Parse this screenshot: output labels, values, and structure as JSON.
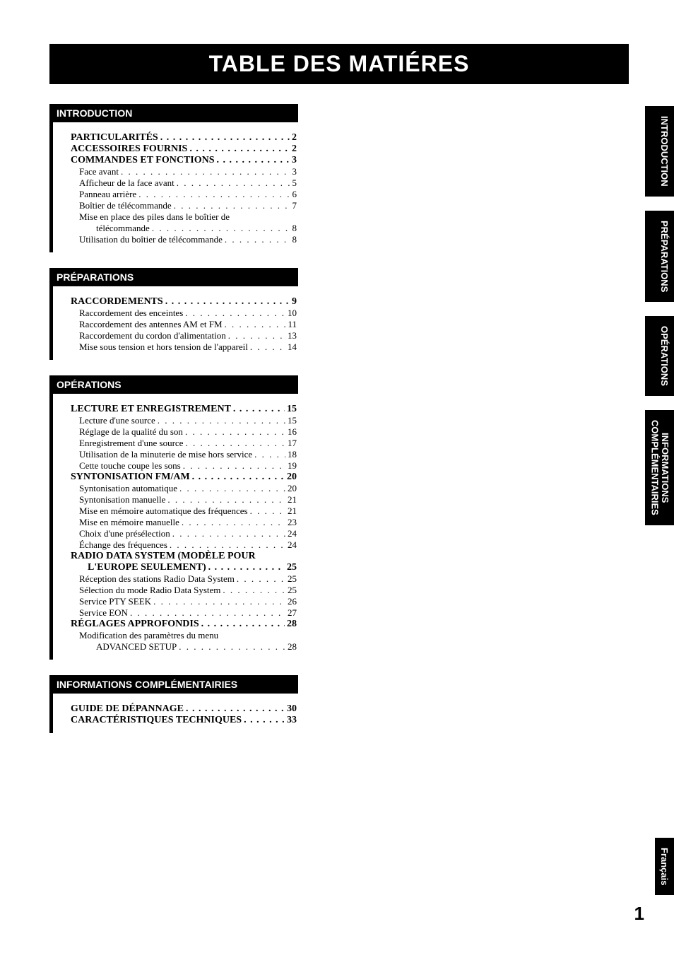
{
  "title": "TABLE DES MATIÉRES",
  "page_number": "1",
  "language_tab": "Français",
  "tabs": [
    "INTRODUCTION",
    "PRÉPARATIONS",
    "OPÉRATIONS",
    "INFORMATIONS\nCOMPLÉMENTAIRIES"
  ],
  "sections": [
    {
      "header": "INTRODUCTION",
      "items": [
        {
          "level": "major",
          "label": "PARTICULARITÉS",
          "page": "2"
        },
        {
          "level": "major",
          "label": "ACCESSOIRES FOURNIS",
          "page": "2"
        },
        {
          "level": "major",
          "label": "COMMANDES ET FONCTIONS",
          "page": "3"
        },
        {
          "level": "sub1",
          "label": "Face avant",
          "page": "3"
        },
        {
          "level": "sub1",
          "label": "Afficheur de la face avant",
          "page": "5"
        },
        {
          "level": "sub1",
          "label": "Panneau arrière",
          "page": "6"
        },
        {
          "level": "sub1",
          "label": "Boîtier de télécommande",
          "page": "7"
        },
        {
          "level": "sub1",
          "label": "Mise en place des piles dans le boîtier de",
          "wrap": "télécommande",
          "page": "8"
        },
        {
          "level": "sub1",
          "label": "Utilisation du boîtier de télécommande",
          "page": "8"
        }
      ]
    },
    {
      "header": "PRÉPARATIONS",
      "items": [
        {
          "level": "major",
          "label": "RACCORDEMENTS",
          "page": "9"
        },
        {
          "level": "sub1",
          "label": "Raccordement des enceintes",
          "page": "10"
        },
        {
          "level": "sub1",
          "label": "Raccordement des antennes AM et FM",
          "page": "11"
        },
        {
          "level": "sub1",
          "label": "Raccordement du cordon d'alimentation",
          "page": "13"
        },
        {
          "level": "sub1",
          "label": "Mise sous tension et hors tension de l'appareil",
          "page": "14"
        }
      ]
    },
    {
      "header": "OPÉRATIONS",
      "items": [
        {
          "level": "major",
          "label": "LECTURE ET ENREGISTREMENT",
          "page": "15"
        },
        {
          "level": "sub1",
          "label": "Lecture d'une source",
          "page": "15"
        },
        {
          "level": "sub1",
          "label": "Réglage de la qualité du son",
          "page": "16"
        },
        {
          "level": "sub1",
          "label": "Enregistrement d'une source",
          "page": "17"
        },
        {
          "level": "sub1",
          "label": "Utilisation de la minuterie de mise hors service",
          "page": "18"
        },
        {
          "level": "sub1",
          "label": "Cette touche coupe les sons",
          "page": "19"
        },
        {
          "level": "major",
          "label": "SYNTONISATION FM/AM",
          "page": "20"
        },
        {
          "level": "sub1",
          "label": "Syntonisation automatique",
          "page": "20"
        },
        {
          "level": "sub1",
          "label": "Syntonisation manuelle",
          "page": "21"
        },
        {
          "level": "sub1",
          "label": "Mise en mémoire automatique des fréquences",
          "page": "21"
        },
        {
          "level": "sub1",
          "label": "Mise en mémoire manuelle",
          "page": "23"
        },
        {
          "level": "sub1",
          "label": "Choix d'une présélection",
          "page": "24"
        },
        {
          "level": "sub1",
          "label": "Échange des fréquences",
          "page": "24"
        },
        {
          "level": "major",
          "label": "RADIO DATA SYSTEM (MODÈLE POUR",
          "nopage": true
        },
        {
          "level": "major",
          "label": "L'EUROPE SEULEMENT)",
          "indent": true,
          "page": "25"
        },
        {
          "level": "sub1",
          "label": "Réception des stations Radio Data System",
          "page": "25"
        },
        {
          "level": "sub1",
          "label": "Sélection du mode Radio Data System",
          "page": "25"
        },
        {
          "level": "sub1",
          "label": "Service PTY SEEK",
          "page": "26"
        },
        {
          "level": "sub1",
          "label": "Service EON",
          "page": "27"
        },
        {
          "level": "major",
          "label": "RÉGLAGES APPROFONDIS",
          "page": "28"
        },
        {
          "level": "sub1",
          "label": "Modification des paramètres du menu",
          "wrap": "ADVANCED SETUP",
          "page": "28"
        }
      ]
    },
    {
      "header": "INFORMATIONS COMPLÉMENTAIRIES",
      "items": [
        {
          "level": "major",
          "label": "GUIDE DE DÉPANNAGE",
          "page": "30"
        },
        {
          "level": "major",
          "label": "CARACTÉRISTIQUES TECHNIQUES",
          "page": "33"
        }
      ]
    }
  ]
}
